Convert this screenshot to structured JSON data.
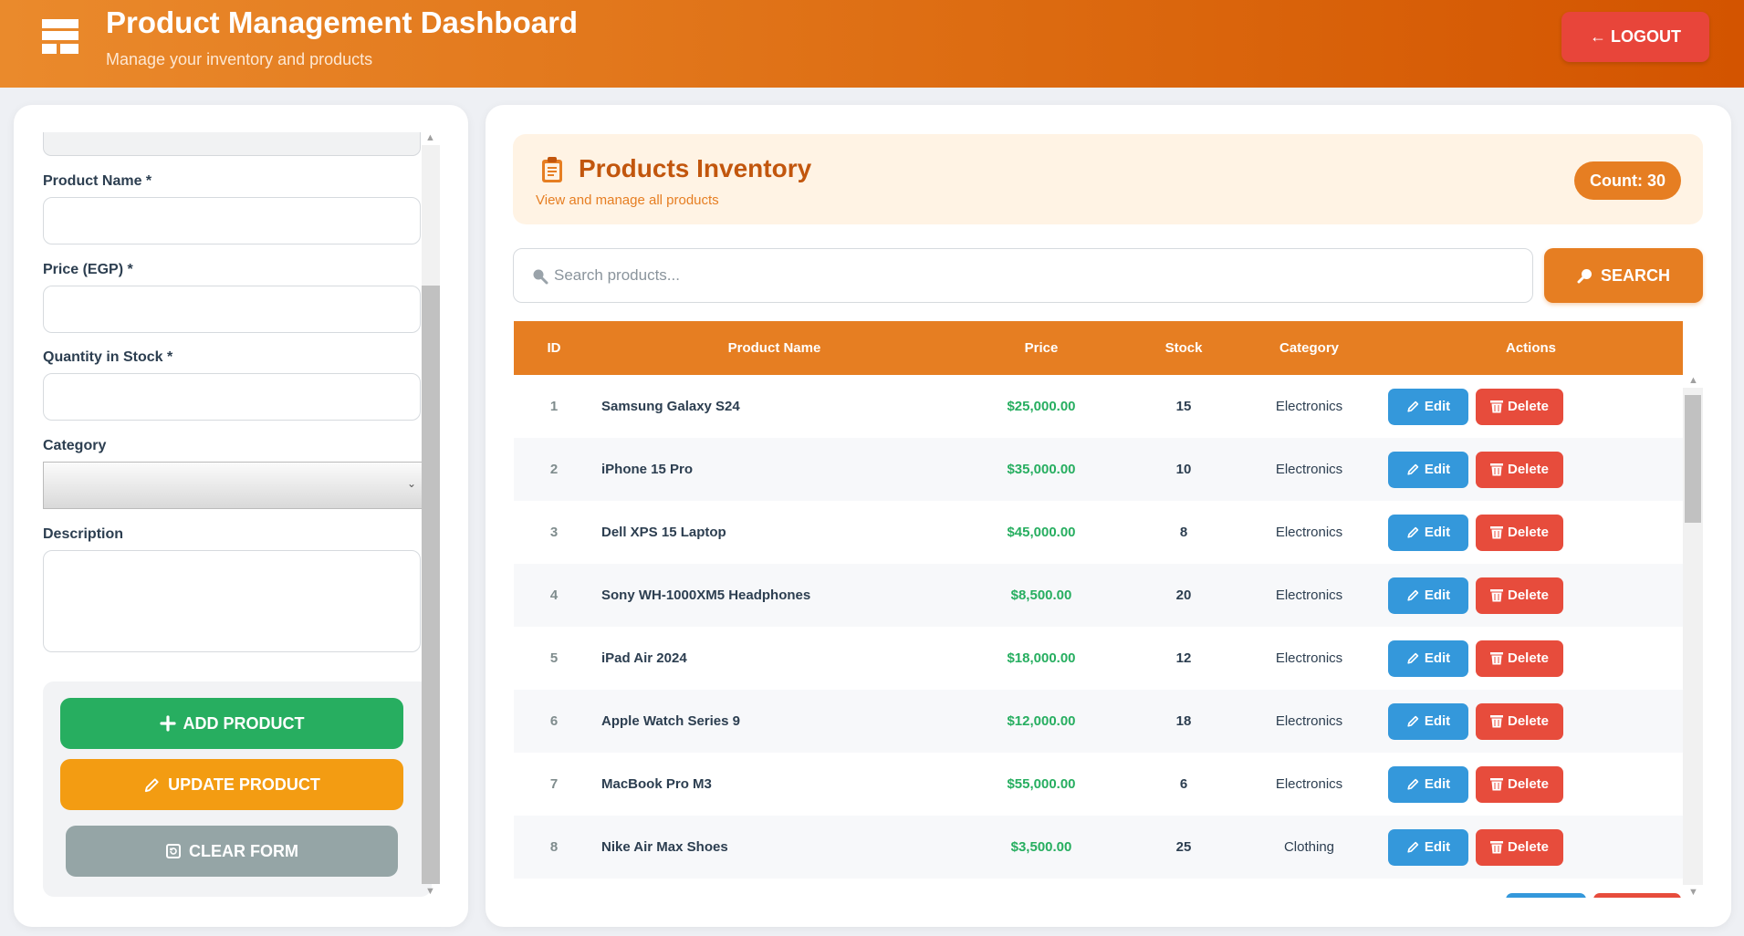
{
  "header": {
    "title": "Product Management Dashboard",
    "subtitle": "Manage your inventory and products",
    "logout_label": "← LOGOUT",
    "gradient": [
      "#ea8a2c",
      "#d35400"
    ]
  },
  "form": {
    "product_name_label": "Product Name *",
    "product_name_value": "",
    "price_label": "Price (EGP) *",
    "price_value": "",
    "quantity_label": "Quantity in Stock *",
    "quantity_value": "",
    "category_label": "Category",
    "category_value": "",
    "description_label": "Description",
    "description_value": "",
    "add_label": "ADD PRODUCT",
    "update_label": "UPDATE PRODUCT",
    "clear_label": "CLEAR FORM"
  },
  "inventory": {
    "title": "Products Inventory",
    "subtitle": "View and manage all products",
    "count_label": "Count: 30",
    "search_placeholder": "Search products...",
    "search_value": "",
    "search_label": "SEARCH",
    "columns": [
      "ID",
      "Product Name",
      "Price",
      "Stock",
      "Category",
      "Actions"
    ],
    "edit_label": "Edit",
    "delete_label": "Delete",
    "rows": [
      {
        "id": "1",
        "name": "Samsung Galaxy S24",
        "price": "$25,000.00",
        "stock": "15",
        "category": "Electronics"
      },
      {
        "id": "2",
        "name": "iPhone 15 Pro",
        "price": "$35,000.00",
        "stock": "10",
        "category": "Electronics"
      },
      {
        "id": "3",
        "name": "Dell XPS 15 Laptop",
        "price": "$45,000.00",
        "stock": "8",
        "category": "Electronics"
      },
      {
        "id": "4",
        "name": "Sony WH-1000XM5 Headphones",
        "price": "$8,500.00",
        "stock": "20",
        "category": "Electronics"
      },
      {
        "id": "5",
        "name": "iPad Air 2024",
        "price": "$18,000.00",
        "stock": "12",
        "category": "Electronics"
      },
      {
        "id": "6",
        "name": "Apple Watch Series 9",
        "price": "$12,000.00",
        "stock": "18",
        "category": "Electronics"
      },
      {
        "id": "7",
        "name": "MacBook Pro M3",
        "price": "$55,000.00",
        "stock": "6",
        "category": "Electronics"
      },
      {
        "id": "8",
        "name": "Nike Air Max Shoes",
        "price": "$3,500.00",
        "stock": "25",
        "category": "Clothing"
      }
    ]
  },
  "icons": {
    "logo": "dashboard-icon",
    "inventory": "clipboard-icon",
    "search": "magnifier-icon",
    "add": "plus-icon",
    "update": "pencil-icon",
    "clear": "clear-icon",
    "edit": "pencil-icon",
    "delete": "trash-icon"
  },
  "colors": {
    "accent": "#e67e22",
    "add": "#27ae60",
    "update": "#f39c12",
    "clear": "#95a5a6",
    "edit": "#3498db",
    "delete": "#e74c3c",
    "logout": "#e8453a",
    "price": "#27ae60"
  }
}
